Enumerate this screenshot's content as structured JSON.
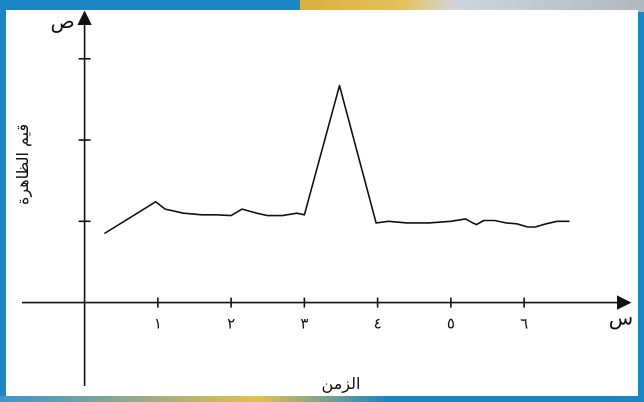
{
  "chart_data": {
    "type": "line",
    "title": "",
    "xlabel": "الزمن",
    "ylabel": "قيم الظاهرة",
    "x_axis_letter": "س",
    "y_axis_letter": "ص",
    "xlim": [
      -0.95,
      7.5
    ],
    "ylim": [
      -1.1,
      3.6
    ],
    "x_ticks": [
      {
        "value": 1,
        "label": "١"
      },
      {
        "value": 2,
        "label": "٢"
      },
      {
        "value": 3,
        "label": "٣"
      },
      {
        "value": 4,
        "label": "٤"
      },
      {
        "value": 5,
        "label": "٥"
      },
      {
        "value": 6,
        "label": "٦"
      }
    ],
    "y_ticks": [
      1,
      2,
      3
    ],
    "grid": false,
    "series": [
      {
        "x": [
          0.27,
          0.97,
          1.1,
          1.35,
          1.6,
          1.8,
          2.0,
          2.15,
          2.35,
          2.5,
          2.7,
          2.9,
          3.0,
          3.48,
          3.98,
          4.15,
          4.4,
          4.7,
          5.0,
          5.2,
          5.3,
          5.35,
          5.45,
          5.6,
          5.75,
          5.9,
          6.05,
          6.15,
          6.3,
          6.45,
          6.62
        ],
        "y": [
          0.85,
          1.24,
          1.15,
          1.1,
          1.08,
          1.08,
          1.07,
          1.15,
          1.1,
          1.07,
          1.07,
          1.1,
          1.08,
          2.67,
          0.98,
          1.0,
          0.98,
          0.98,
          1.0,
          1.03,
          0.98,
          0.96,
          1.01,
          1.01,
          0.98,
          0.97,
          0.93,
          0.93,
          0.97,
          1.0,
          1.0
        ]
      }
    ]
  }
}
